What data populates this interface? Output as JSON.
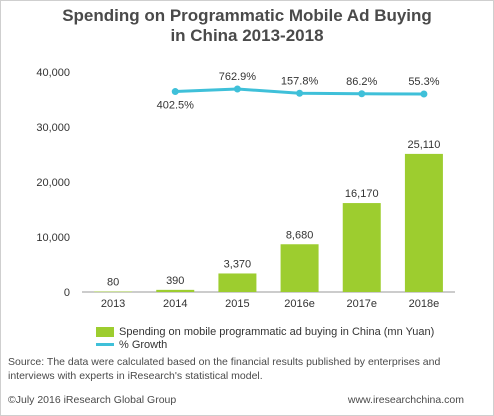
{
  "chart_data": {
    "type": "bar",
    "title_line1": "Spending on Programmatic Mobile Ad Buying",
    "title_line2": "in China 2013-2018",
    "categories": [
      "2013",
      "2014",
      "2015",
      "2016e",
      "2017e",
      "2018e"
    ],
    "series": [
      {
        "name": "Spending on mobile programmatic ad buying in China (mn Yuan)",
        "type": "bar",
        "values": [
          80,
          390,
          3370,
          8680,
          16170,
          25110
        ],
        "labels": [
          "80",
          "390",
          "3,370",
          "8,680",
          "16,170",
          "25,110"
        ]
      },
      {
        "name": "% Growth",
        "type": "line",
        "x": [
          "2014",
          "2015",
          "2016e",
          "2017e",
          "2018e"
        ],
        "values": [
          402.5,
          762.9,
          157.8,
          86.2,
          55.3
        ],
        "labels": [
          "402.5%",
          "762.9%",
          "157.8%",
          "86.2%",
          "55.3%"
        ]
      }
    ],
    "yticks": [
      "0",
      "10,000",
      "20,000",
      "30,000",
      "40,000"
    ],
    "ylim": [
      0,
      40000
    ],
    "grid": false,
    "legend_position": "bottom",
    "colors": {
      "bar": "#9dcd2f",
      "line": "#3fc0d9"
    }
  },
  "source": "Source: The data were calculated based on the financial results published by enterprises and interviews with experts in iResearch's statistical model.",
  "footer": {
    "copyright": "©July 2016 iResearch Global Group",
    "website": "www.iresearchchina.com"
  }
}
